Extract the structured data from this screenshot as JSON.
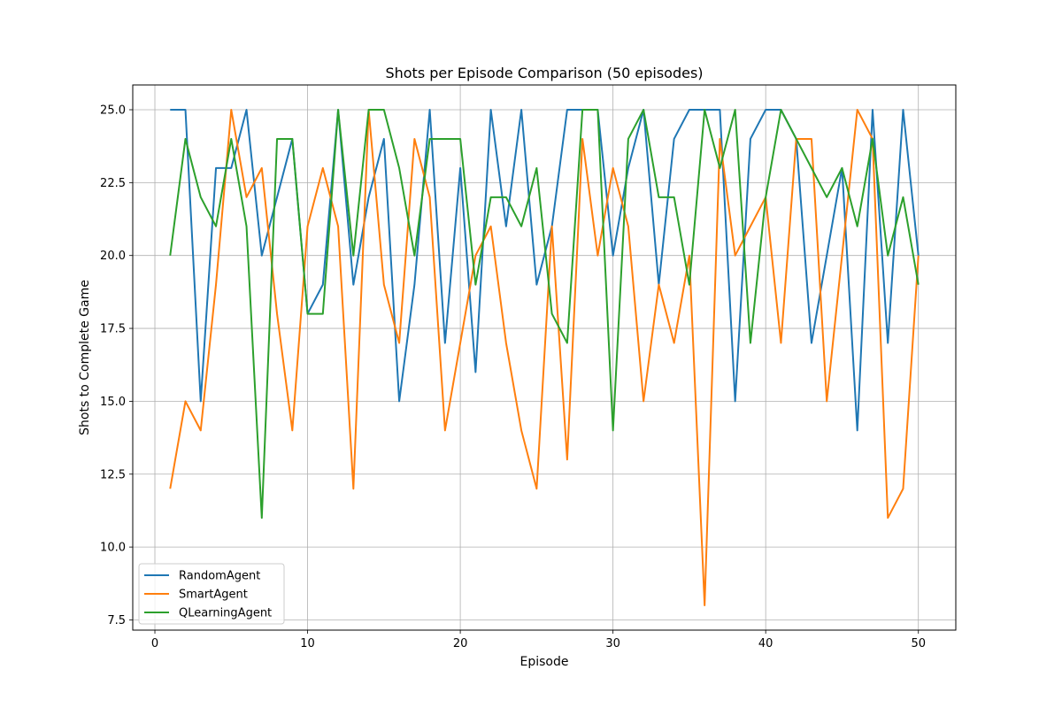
{
  "chart_data": {
    "type": "line",
    "title": "Shots per Episode Comparison (50 episodes)",
    "xlabel": "Episode",
    "ylabel": "Shots to Complete Game",
    "xlim": [
      -1.45,
      52.45
    ],
    "ylim": [
      7.15,
      25.85
    ],
    "xticks": [
      0,
      10,
      20,
      30,
      40,
      50
    ],
    "yticks": [
      7.5,
      10.0,
      12.5,
      15.0,
      17.5,
      20.0,
      22.5,
      25.0
    ],
    "grid": true,
    "legend_position": "lower-left",
    "x": [
      1,
      2,
      3,
      4,
      5,
      6,
      7,
      8,
      9,
      10,
      11,
      12,
      13,
      14,
      15,
      16,
      17,
      18,
      19,
      20,
      21,
      22,
      23,
      24,
      25,
      26,
      27,
      28,
      29,
      30,
      31,
      32,
      33,
      34,
      35,
      36,
      37,
      38,
      39,
      40,
      41,
      42,
      43,
      44,
      45,
      46,
      47,
      48,
      49,
      50
    ],
    "series": [
      {
        "name": "RandomAgent",
        "color": "#1f77b4",
        "values": [
          25,
          25,
          15,
          23,
          23,
          25,
          20,
          22,
          24,
          18,
          19,
          25,
          19,
          22,
          24,
          15,
          19,
          25,
          17,
          23,
          16,
          25,
          21,
          25,
          19,
          21,
          25,
          25,
          25,
          20,
          23,
          25,
          19,
          24,
          25,
          25,
          25,
          15,
          24,
          25,
          25,
          24,
          17,
          20,
          23,
          14,
          25,
          17,
          25,
          20
        ]
      },
      {
        "name": "SmartAgent",
        "color": "#ff7f0e",
        "values": [
          12,
          15,
          14,
          19,
          25,
          22,
          23,
          18,
          14,
          21,
          23,
          21,
          12,
          25,
          19,
          17,
          24,
          22,
          14,
          17,
          20,
          21,
          17,
          14,
          12,
          21,
          13,
          24,
          20,
          23,
          21,
          15,
          19,
          17,
          20,
          8,
          24,
          20,
          21,
          22,
          17,
          24,
          24,
          15,
          20,
          25,
          24,
          11,
          12,
          20
        ]
      },
      {
        "name": "QLearningAgent",
        "color": "#2ca02c",
        "values": [
          20,
          24,
          22,
          21,
          24,
          21,
          11,
          24,
          24,
          18,
          18,
          25,
          20,
          25,
          25,
          23,
          20,
          24,
          24,
          24,
          19,
          22,
          22,
          21,
          23,
          18,
          17,
          25,
          25,
          14,
          24,
          25,
          22,
          22,
          19,
          25,
          23,
          25,
          17,
          22,
          25,
          24,
          23,
          22,
          23,
          21,
          24,
          20,
          22,
          19
        ]
      }
    ]
  }
}
